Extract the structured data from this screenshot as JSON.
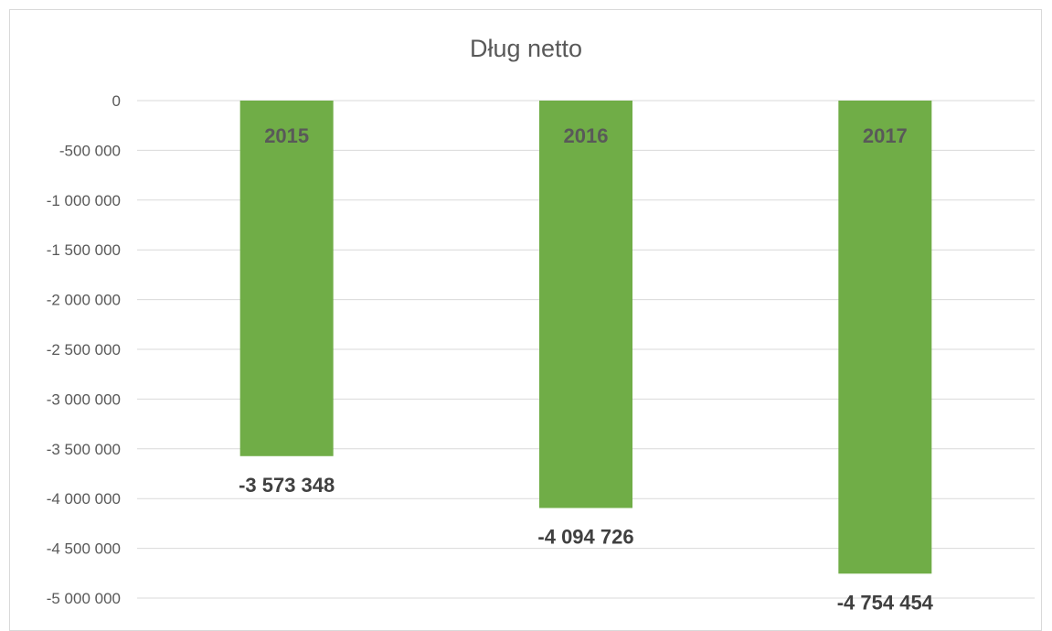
{
  "chart_data": {
    "type": "bar",
    "title": "Dług netto",
    "categories": [
      "2015",
      "2016",
      "2017"
    ],
    "values": [
      -3573348,
      -4094726,
      -4754454
    ],
    "value_labels": [
      "-3 573 348",
      "-4 094 726",
      "-4 754 454"
    ],
    "yticks": [
      0,
      -500000,
      -1000000,
      -1500000,
      -2000000,
      -2500000,
      -3000000,
      -3500000,
      -4000000,
      -4500000,
      -5000000
    ],
    "ytick_labels": [
      "0",
      "-500 000",
      "-1 000 000",
      "-1 500 000",
      "-2 000 000",
      "-2 500 000",
      "-3 000 000",
      "-3 500 000",
      "-4 000 000",
      "-4 500 000",
      "-5 000 000"
    ],
    "ylim": [
      -5000000,
      0
    ],
    "grid": true,
    "legend": "none",
    "bar_color": "#70ad47",
    "xlabel": "",
    "ylabel": ""
  }
}
